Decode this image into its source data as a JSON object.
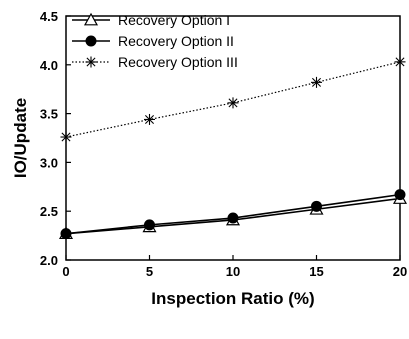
{
  "chart_data": {
    "type": "line",
    "title": "",
    "xlabel": "Inspection Ratio (%)",
    "ylabel": "IO/Update",
    "xlim": [
      0,
      20
    ],
    "ylim": [
      2.0,
      4.5
    ],
    "xticks": [
      0,
      5,
      10,
      15,
      20
    ],
    "yticks": [
      2.0,
      2.5,
      3.0,
      3.5,
      4.0,
      4.5
    ],
    "xtick_labels": [
      "0",
      "5",
      "10",
      "15",
      "20"
    ],
    "ytick_labels": [
      "2.0",
      "2.5",
      "3.0",
      "3.5",
      "4.0",
      "4.5"
    ],
    "grid": false,
    "legend_position": "top-left",
    "x": [
      0,
      5,
      10,
      15,
      20
    ],
    "series": [
      {
        "name": "Recovery Option I",
        "values": [
          2.27,
          2.34,
          2.41,
          2.52,
          2.63
        ],
        "marker": "triangle-open",
        "line": "solid",
        "color": "#000000"
      },
      {
        "name": "Recovery Option II",
        "values": [
          2.27,
          2.36,
          2.43,
          2.55,
          2.67
        ],
        "marker": "circle-filled",
        "line": "solid",
        "color": "#000000"
      },
      {
        "name": "Recovery Option III",
        "values": [
          3.26,
          3.44,
          3.61,
          3.82,
          4.03
        ],
        "marker": "asterisk",
        "line": "dotted",
        "color": "#000000"
      }
    ]
  }
}
